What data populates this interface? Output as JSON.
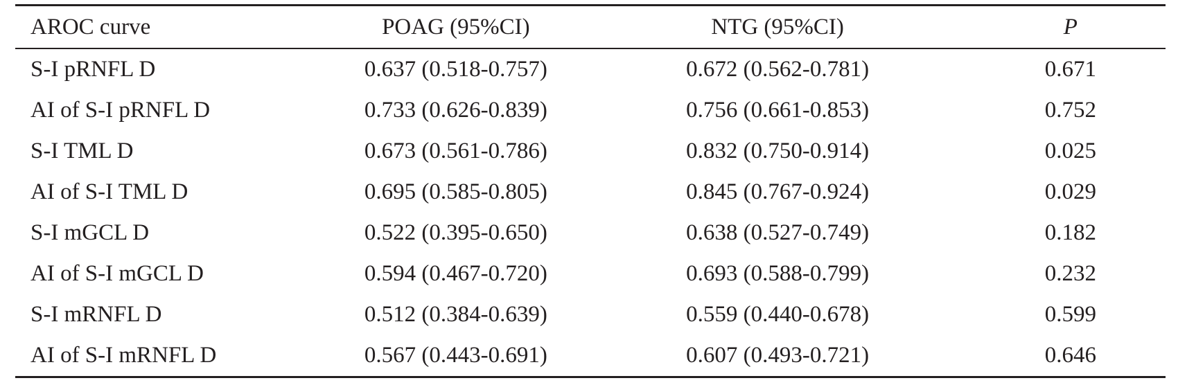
{
  "table": {
    "headers": [
      "AROC curve",
      "POAG (95%CI)",
      "NTG (95%CI)",
      "P"
    ],
    "rows": [
      [
        "S-I pRNFL D",
        "0.637 (0.518-0.757)",
        "0.672 (0.562-0.781)",
        "0.671"
      ],
      [
        "AI of S-I pRNFL D",
        "0.733 (0.626-0.839)",
        "0.756 (0.661-0.853)",
        "0.752"
      ],
      [
        "S-I TML D",
        "0.673 (0.561-0.786)",
        "0.832 (0.750-0.914)",
        "0.025"
      ],
      [
        "AI of S-I TML D",
        "0.695 (0.585-0.805)",
        "0.845 (0.767-0.924)",
        "0.029"
      ],
      [
        "S-I mGCL D",
        "0.522 (0.395-0.650)",
        "0.638 (0.527-0.749)",
        "0.182"
      ],
      [
        "AI of S-I mGCL D",
        "0.594 (0.467-0.720)",
        "0.693 (0.588-0.799)",
        "0.232"
      ],
      [
        "S-I mRNFL D",
        "0.512 (0.384-0.639)",
        "0.559 (0.440-0.678)",
        "0.599"
      ],
      [
        "AI of S-I mRNFL D",
        "0.567 (0.443-0.691)",
        "0.607 (0.493-0.721)",
        "0.646"
      ]
    ]
  }
}
